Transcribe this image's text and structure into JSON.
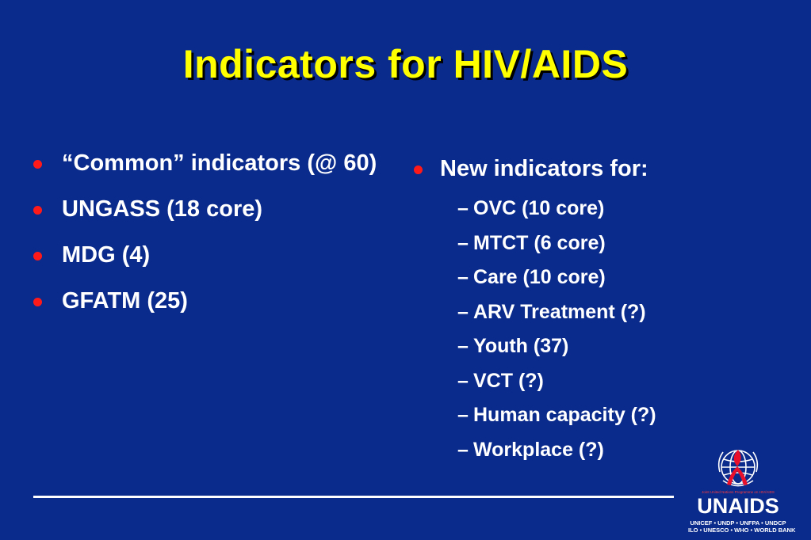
{
  "title": "Indicators for HIV/AIDS",
  "left_bullets": [
    "“Common” indicators (@ 60)",
    "UNGASS (18 core)",
    "MDG (4)",
    "GFATM (25)"
  ],
  "right": {
    "heading": "New indicators for:",
    "items": [
      "OVC (10 core)",
      "MTCT (6 core)",
      "Care (10 core)",
      "ARV Treatment (?)",
      "Youth (37)",
      "VCT (?)",
      "Human capacity (?)",
      "Workplace (?)"
    ]
  },
  "logo": {
    "tagline": "Joint United Nations Programme on HIV/AIDS",
    "name": "UNAIDS",
    "cosponsors_line1": "UNICEF • UNDP • UNFPA • UNDCP",
    "cosponsors_line2": "ILO • UNESCO • WHO • WORLD BANK"
  },
  "colors": {
    "background": "#0b2b8c",
    "title": "#ffff00",
    "bullet": "#ff1a1a",
    "text": "#ffffff"
  }
}
